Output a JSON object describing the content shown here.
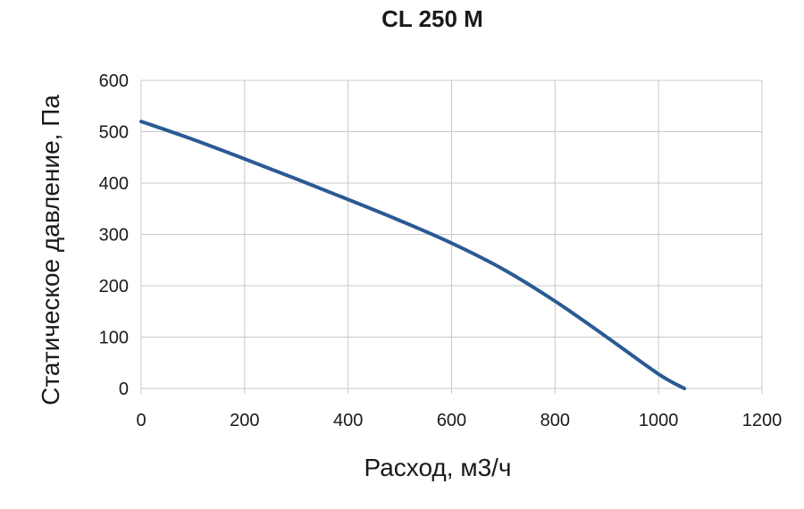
{
  "chart_data": {
    "type": "line",
    "title": "CL 250 M",
    "xlabel": "Расход, м3/ч",
    "ylabel": "Статическое давление, Па",
    "xlim": [
      0,
      1200
    ],
    "ylim": [
      0,
      600
    ],
    "xticks": [
      "0",
      "200",
      "400",
      "600",
      "800",
      "1000",
      "1200"
    ],
    "yticks": [
      "0",
      "100",
      "200",
      "300",
      "400",
      "500",
      "600"
    ],
    "grid": true,
    "legend": "none",
    "series": [
      {
        "color": "#2a5a93",
        "x": [
          0,
          100,
          200,
          300,
          400,
          500,
          600,
          700,
          800,
          900,
          1000,
          1050
        ],
        "y": [
          520,
          485,
          447,
          408,
          368,
          327,
          283,
          232,
          170,
          100,
          28,
          0
        ]
      }
    ]
  }
}
